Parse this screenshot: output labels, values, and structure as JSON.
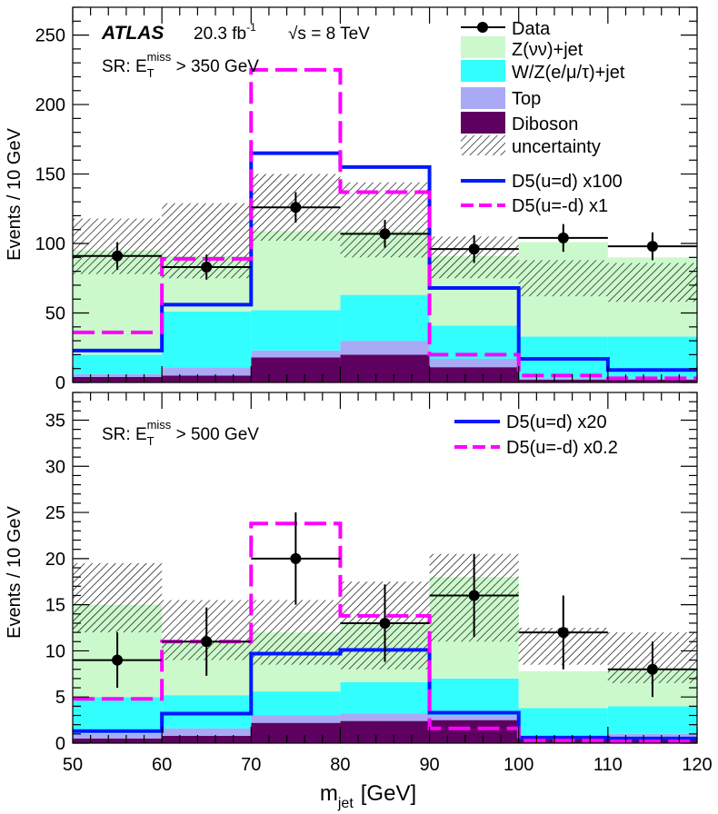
{
  "chart_data": [
    {
      "type": "bar",
      "panel": "top",
      "experiment": "ATLAS",
      "luminosity": "20.3 fb",
      "lumi_exp": "-1",
      "energy": "√s = 8 TeV",
      "region_prefix": "SR: E",
      "region_sub": "T",
      "region_sup": "miss",
      "region_suffix": " > 350 GeV",
      "ylabel": "Events / 10 GeV",
      "xlabel": "",
      "ylim": [
        0,
        270
      ],
      "yticks": [
        "0",
        "50",
        "100",
        "150",
        "200",
        "250"
      ],
      "ytick_values": [
        0,
        50,
        100,
        150,
        200,
        250
      ],
      "bin_edges": [
        50,
        60,
        70,
        80,
        90,
        100,
        110,
        120
      ],
      "stack": [
        {
          "name": "Diboson",
          "color": "#5e0060",
          "values": [
            4,
            5,
            18,
            20,
            11,
            2,
            2
          ]
        },
        {
          "name": "Top",
          "color": "#a9a9f5",
          "values": [
            2,
            6,
            5,
            10,
            6,
            1,
            1
          ]
        },
        {
          "name": "W/Z(e/μ/τ)+jet",
          "color": "#33fefe",
          "values": [
            14,
            40,
            29,
            33,
            24,
            30,
            30
          ]
        },
        {
          "name": "Z(νν)+jet",
          "color": "#ccf9cc",
          "values": [
            75,
            40,
            57,
            46,
            50,
            68,
            57
          ]
        }
      ],
      "uncertainty": {
        "name": "uncertainty",
        "up": [
          118,
          129,
          150,
          144,
          105,
          88,
          86
        ],
        "down": [
          78,
          75,
          102,
          90,
          75,
          62,
          58
        ]
      },
      "data": {
        "name": "Data",
        "x": [
          55,
          65,
          75,
          85,
          95,
          105,
          115
        ],
        "values": [
          91,
          83,
          126,
          107,
          96,
          104,
          98
        ],
        "err": [
          10,
          9,
          11,
          10,
          10,
          10,
          10
        ]
      },
      "signals": [
        {
          "name": "D5(u=d) x100",
          "color": "#0019ff",
          "style": "solid",
          "values": [
            23,
            56,
            165,
            155,
            68,
            17,
            9
          ]
        },
        {
          "name": "D5(u=-d) x1",
          "color": "#ff00ff",
          "style": "dashed",
          "values": [
            36,
            89,
            225,
            137,
            20,
            5,
            3
          ]
        }
      ]
    },
    {
      "type": "bar",
      "panel": "bottom",
      "region_prefix": "SR: E",
      "region_sub": "T",
      "region_sup": "miss",
      "region_suffix": " > 500 GeV",
      "ylabel": "Events / 10 GeV",
      "xlabel_main": "m",
      "xlabel_sub": "jet",
      "xlabel_unit": "[GeV]",
      "ylim": [
        0,
        38
      ],
      "yticks": [
        "0",
        "5",
        "10",
        "15",
        "20",
        "25",
        "30",
        "35"
      ],
      "ytick_values": [
        0,
        5,
        10,
        15,
        20,
        25,
        30,
        35
      ],
      "xticks": [
        "50",
        "60",
        "70",
        "80",
        "90",
        "100",
        "110",
        "120"
      ],
      "xtick_values": [
        50,
        60,
        70,
        80,
        90,
        100,
        110,
        120
      ],
      "bin_edges": [
        50,
        60,
        70,
        80,
        90,
        100,
        110,
        120
      ],
      "stack": [
        {
          "name": "Diboson",
          "color": "#5e0060",
          "values": [
            0.5,
            0.8,
            2.2,
            2.4,
            2.5,
            0.4,
            0.4
          ]
        },
        {
          "name": "Top",
          "color": "#a9a9f5",
          "values": [
            0.5,
            0.8,
            0.8,
            0.8,
            0.5,
            0.4,
            0.6
          ]
        },
        {
          "name": "W/Z(e/μ/τ)+jet",
          "color": "#33fefe",
          "values": [
            4,
            3.6,
            2.6,
            3.4,
            4.0,
            3.0,
            3.0
          ]
        },
        {
          "name": "Z(νν)+jet",
          "color": "#ccf9cc",
          "values": [
            10,
            5.8,
            6.4,
            6.4,
            11.0,
            4.0,
            4.0
          ]
        }
      ],
      "uncertainty": {
        "name": "uncertainty",
        "up": [
          19.5,
          15.5,
          15.5,
          17.5,
          20.5,
          12.5,
          12
        ],
        "down": [
          12,
          9,
          8.5,
          8,
          11,
          8.5,
          6.5
        ]
      },
      "data": {
        "name": "Data",
        "x": [
          55,
          65,
          75,
          85,
          95,
          105,
          115
        ],
        "values": [
          9,
          11,
          20,
          13,
          16,
          12,
          8
        ],
        "err": [
          3,
          3.7,
          5,
          4.2,
          4.5,
          4,
          3
        ]
      },
      "signals": [
        {
          "name": "D5(u=d) x20",
          "color": "#0019ff",
          "style": "solid",
          "values": [
            1.3,
            3.2,
            9.7,
            10.1,
            3.3,
            0.6,
            0.5
          ]
        },
        {
          "name": "D5(u=-d) x0.2",
          "color": "#ff00ff",
          "style": "dashed",
          "values": [
            4.8,
            11.0,
            23.8,
            13.8,
            1.6,
            0.3,
            0.2
          ]
        }
      ]
    }
  ]
}
